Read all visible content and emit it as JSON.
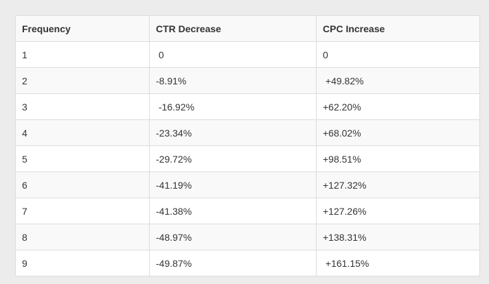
{
  "table": {
    "headers": [
      "Frequency",
      "CTR Decrease",
      "CPC Increase"
    ],
    "rows": [
      [
        "1",
        " 0",
        "0"
      ],
      [
        "2",
        "-8.91%",
        " +49.82%"
      ],
      [
        "3",
        " -16.92%",
        "+62.20%"
      ],
      [
        "4",
        "-23.34%",
        "+68.02%"
      ],
      [
        "5",
        "-29.72%",
        "+98.51%"
      ],
      [
        "6",
        "-41.19%",
        "+127.32%"
      ],
      [
        "7",
        "-41.38%",
        "+127.26%"
      ],
      [
        "8",
        "-48.97%",
        "+138.31%"
      ],
      [
        "9",
        "-49.87%",
        " +161.15%"
      ]
    ]
  }
}
